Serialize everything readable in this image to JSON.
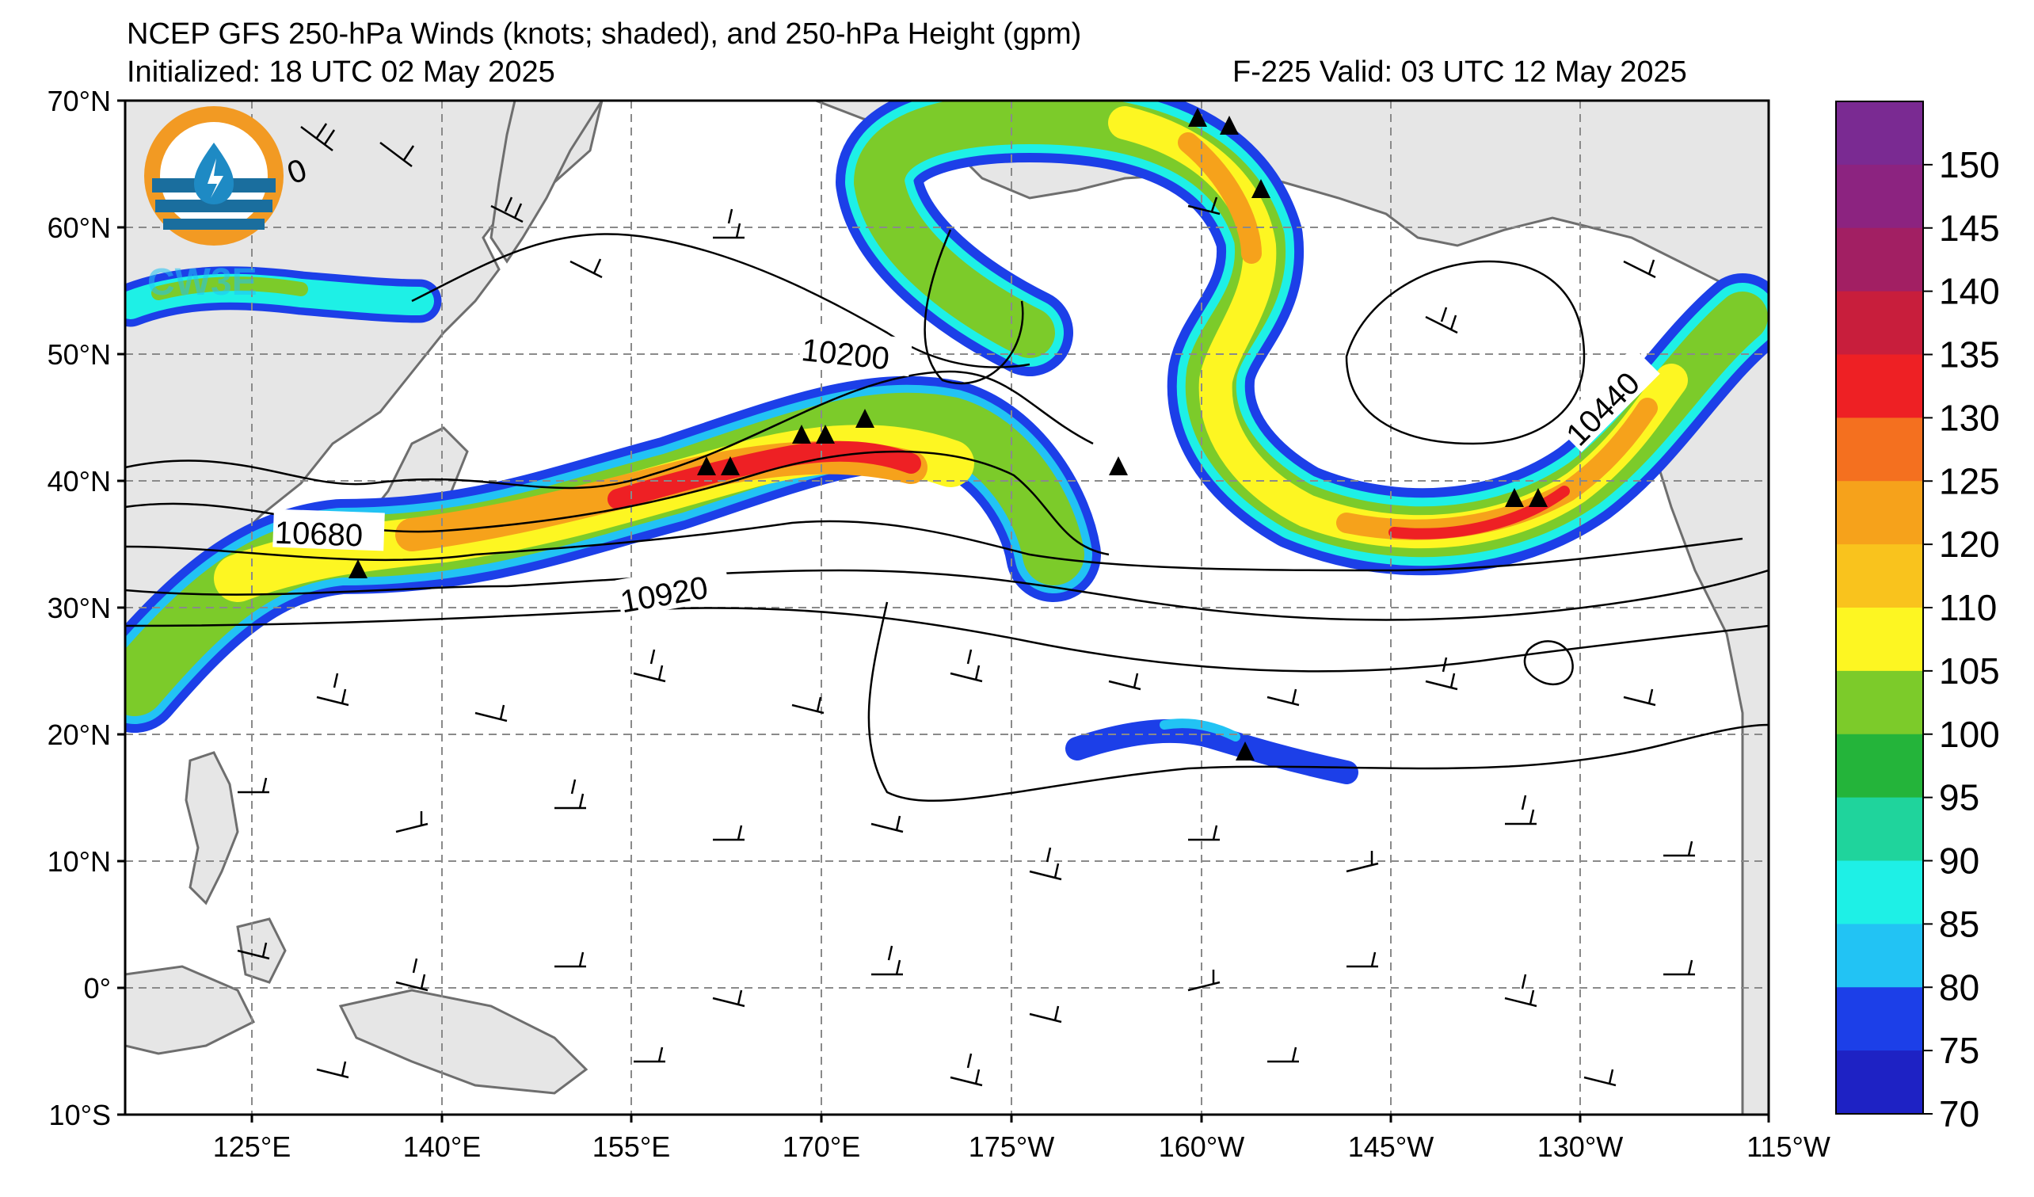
{
  "header": {
    "title": "NCEP GFS 250-hPa Winds (knots; shaded), and 250-hPa Height (gpm)",
    "initialized": "Initialized: 18 UTC 02 May 2025",
    "valid": "F-225  Valid: 03 UTC 12 May 2025"
  },
  "logo": {
    "text": "CW3E",
    "colors": {
      "ring": "#f29a23",
      "drop": "#1e8ac4",
      "waves": "#1a6e9e"
    }
  },
  "axes": {
    "lat_labels": [
      "70°N",
      "60°N",
      "50°N",
      "40°N",
      "30°N",
      "20°N",
      "10°N",
      "0°",
      "10°S"
    ],
    "lon_labels": [
      "125°E",
      "140°E",
      "155°E",
      "170°E",
      "175°W",
      "160°W",
      "145°W",
      "130°W",
      "115°W"
    ]
  },
  "contour_labels": [
    "10200",
    "10440",
    "10680",
    "10920"
  ],
  "partial_label": "0",
  "colorbar": {
    "ticks": [
      "150",
      "145",
      "140",
      "135",
      "130",
      "125",
      "120",
      "110",
      "105",
      "100",
      "95",
      "90",
      "85",
      "80",
      "75",
      "70"
    ],
    "colors": [
      "#7a2a92",
      "#8c2380",
      "#a21f63",
      "#c81e3c",
      "#ee2024",
      "#f4701f",
      "#f6a21b",
      "#f9c31d",
      "#fdf622",
      "#7ccb2a",
      "#24b43a",
      "#1fd49c",
      "#1ef0e6",
      "#22c3f4",
      "#1c3fe8",
      "#1e22c4"
    ]
  },
  "colors": {
    "land": "#e6e6e6",
    "coast": "#6e6e6e",
    "grid": "#8a8a8a"
  }
}
